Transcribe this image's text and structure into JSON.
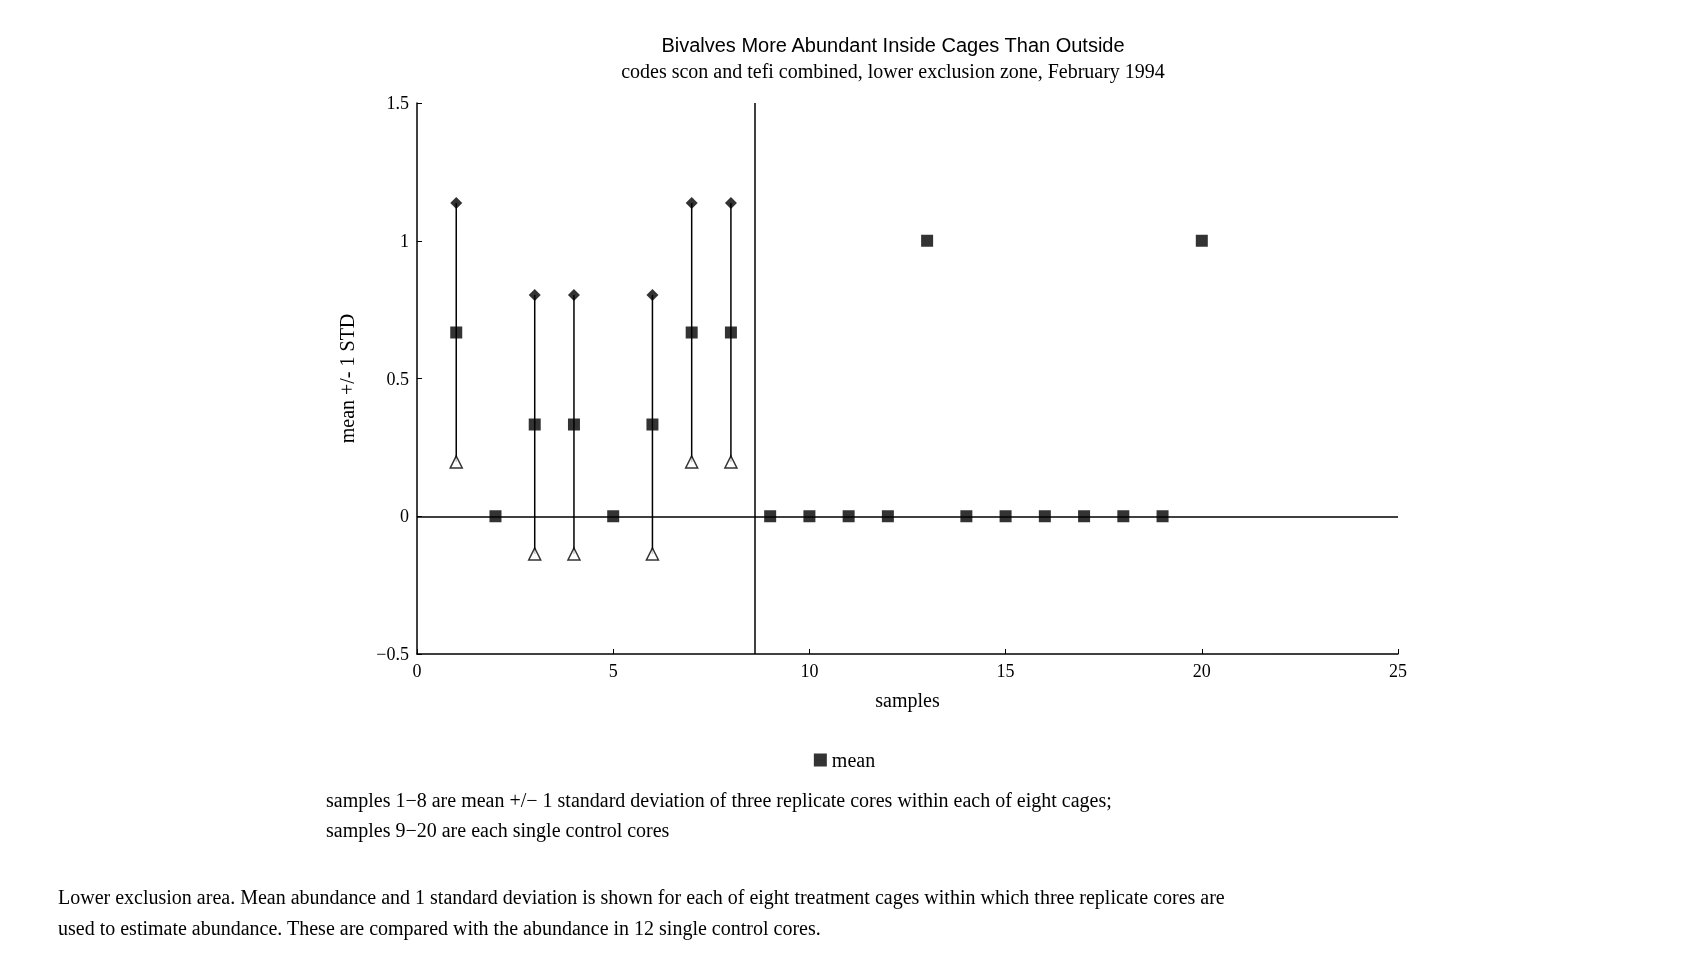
{
  "chart_data": {
    "type": "scatter",
    "title": "Bivalves More Abundant Inside Cages Than Outside",
    "subtitle": "codes scon and tefi combined, lower exclusion zone, February 1994",
    "xlabel": "samples",
    "ylabel": "mean +/- 1 STD",
    "x": [
      1,
      2,
      3,
      4,
      5,
      6,
      7,
      8,
      9,
      10,
      11,
      12,
      13,
      14,
      15,
      16,
      17,
      18,
      19,
      20
    ],
    "series": [
      {
        "name": "mean",
        "color": "#000000",
        "values": [
          0.667,
          0,
          0.333,
          0.333,
          0,
          0.333,
          0.667,
          0.667,
          0,
          0,
          0,
          0,
          1,
          0,
          0,
          0,
          0,
          0,
          0,
          1
        ],
        "errors": [
          0.47,
          null,
          0.47,
          0.47,
          null,
          0.47,
          0.47,
          0.47,
          null,
          null,
          null,
          null,
          null,
          null,
          null,
          null,
          null,
          null,
          null,
          null
        ]
      },
      {
        "color": "#000000",
        "marker": "diamond",
        "values": [
          1.137,
          null,
          0.803,
          0.803,
          null,
          0.803,
          1.137,
          1.137,
          null,
          null,
          null,
          null,
          null,
          null,
          null,
          null,
          null,
          null,
          null,
          null
        ]
      },
      {
        "color": "#000000",
        "marker": "triangle",
        "values": [
          0.197,
          null,
          -0.137,
          -0.137,
          null,
          -0.137,
          0.197,
          0.197,
          null,
          null,
          null,
          null,
          null,
          null,
          null,
          null,
          null,
          null,
          null,
          null
        ]
      }
    ],
    "marker": "square",
    "xlim": [
      0,
      25
    ],
    "xticks": [
      0,
      5,
      10,
      15,
      20,
      25
    ],
    "ylim": [
      -0.5,
      1.5
    ],
    "yticks": [
      {
        "value": -0.5,
        "label": "−0.5"
      },
      0,
      0.5,
      1,
      1.5
    ],
    "ref_lines": [
      {
        "axis": "x",
        "value": 8.6,
        "label": null,
        "color": "#000000"
      },
      {
        "axis": "y",
        "value": 0,
        "label": null,
        "color": "#000000"
      }
    ],
    "grid": false,
    "legend": "bottom",
    "annotations": [
      "samples 1−8 are mean +/− 1 standard deviation of three replicate cores within each of eight cages;",
      "samples 9−20 are each single control cores",
      "Lower exclusion area. Mean abundance and 1 standard deviation is shown for each of eight treatment cages within which three replicate cores are",
      "used to estimate abundance. These are compared with the abundance in 12 single control cores."
    ]
  }
}
